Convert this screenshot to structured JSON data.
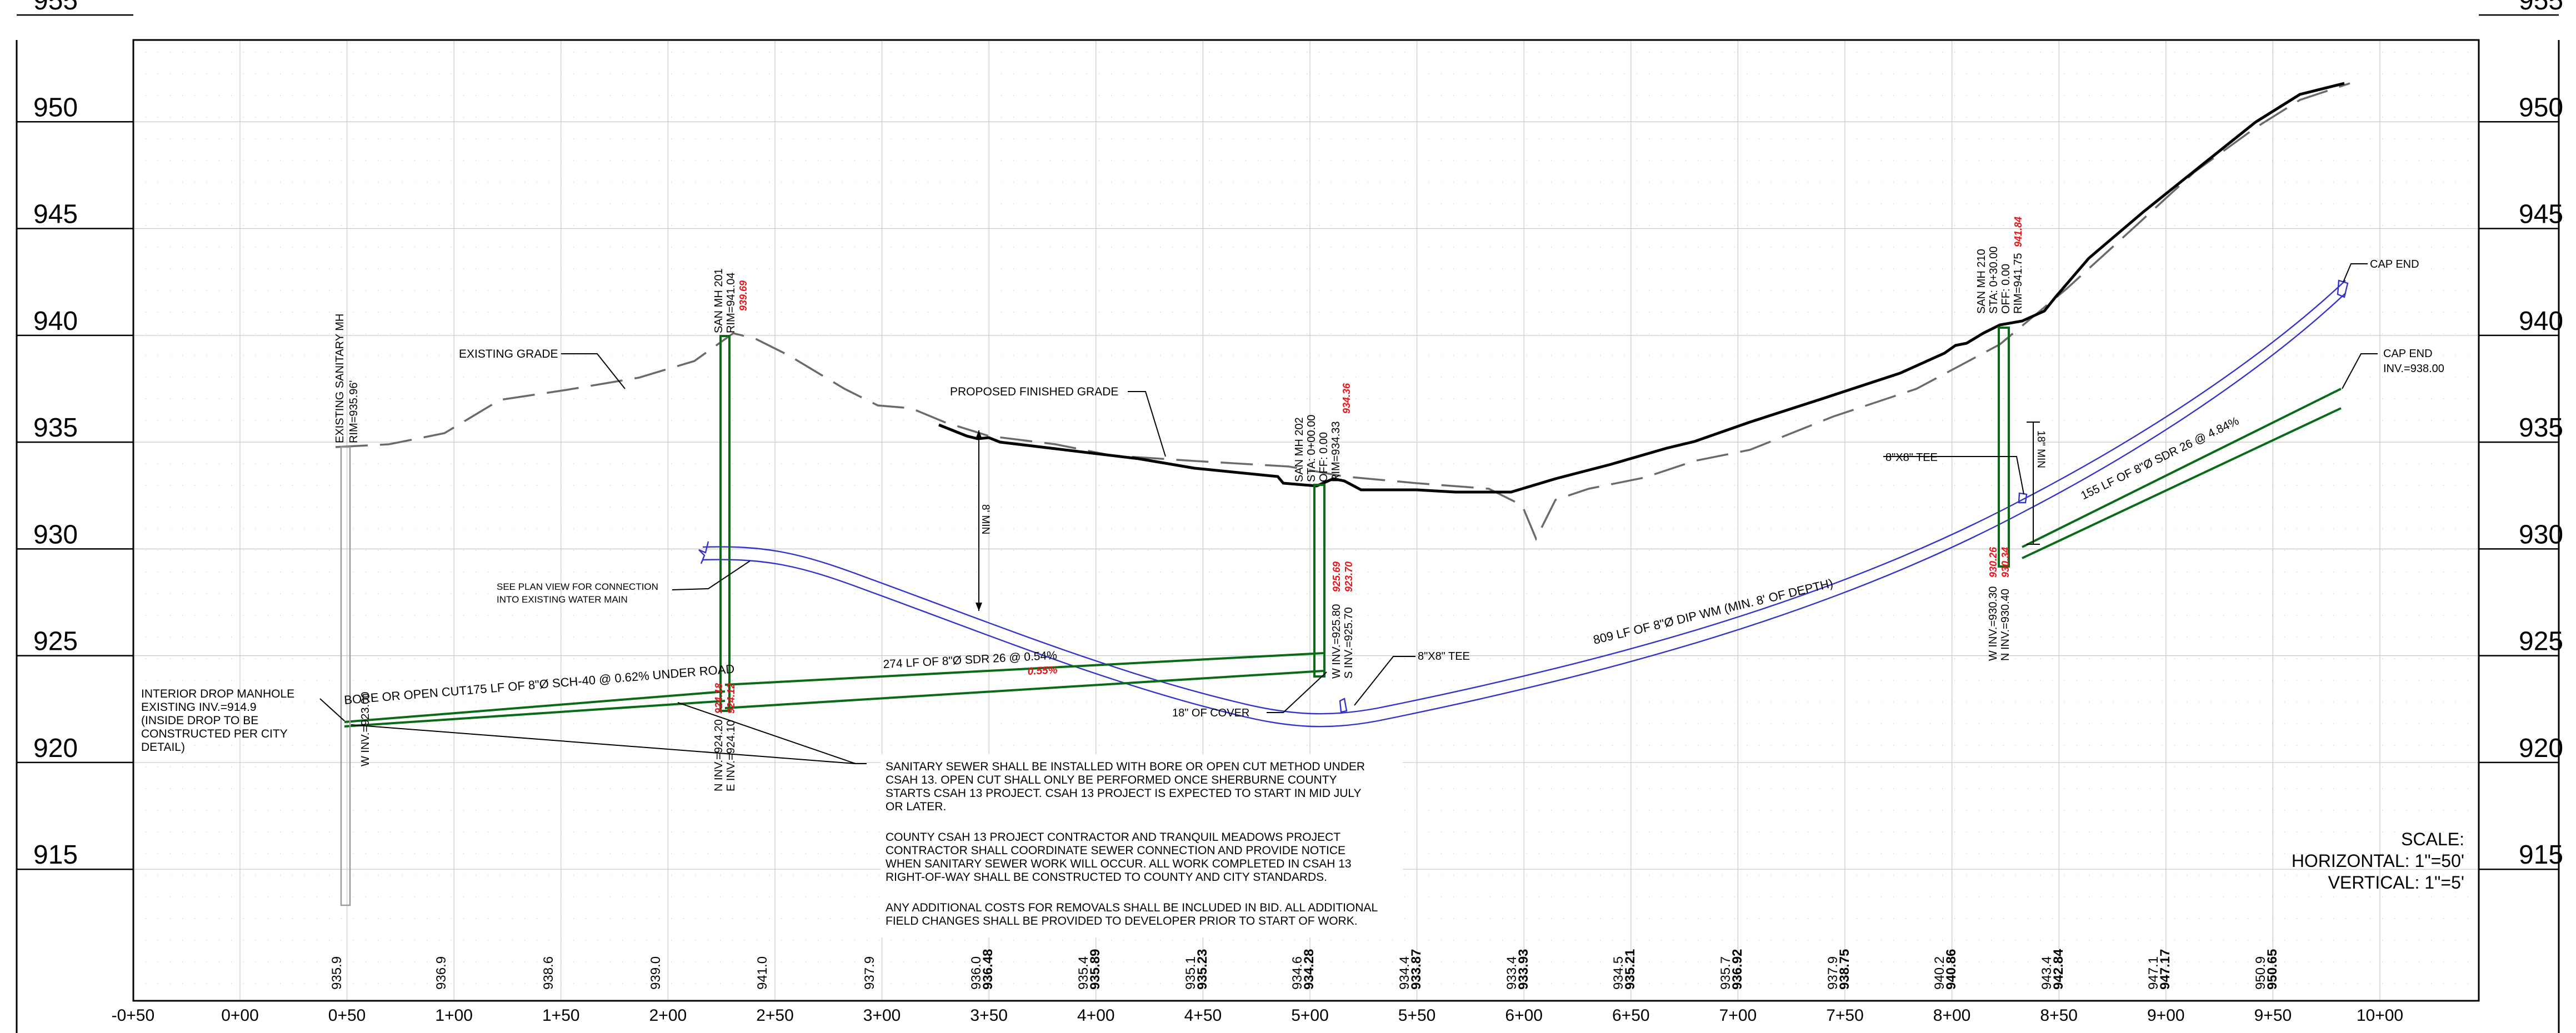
{
  "profile": {
    "elevation_labels_left": [
      "955",
      "950",
      "945",
      "940",
      "935",
      "930",
      "925",
      "920",
      "915"
    ],
    "elevation_labels_right": [
      "955",
      "950",
      "945",
      "940",
      "935",
      "930",
      "925",
      "920",
      "915"
    ],
    "station_labels": [
      "-0+50",
      "0+00",
      "0+50",
      "1+00",
      "1+50",
      "2+00",
      "2+50",
      "3+00",
      "3+50",
      "4+00",
      "4+50",
      "5+00",
      "5+50",
      "6+00",
      "6+50",
      "7+00",
      "7+50",
      "8+00",
      "8+50",
      "9+00",
      "9+50",
      "10+00"
    ],
    "existing_elevations": [
      "935.9",
      "936.9",
      "938.6",
      "939.0",
      "941.0",
      "937.9",
      "936.0",
      "935.4",
      "935.1",
      "934.6",
      "934.4",
      "933.4",
      "934.5",
      "935.7",
      "937.9",
      "940.2",
      "943.4",
      "947.1",
      "950.9"
    ],
    "proposed_elevations": [
      "936.48",
      "935.89",
      "935.23",
      "934.28",
      "933.87",
      "933.93",
      "935.21",
      "936.92",
      "938.75",
      "940.86",
      "942.84",
      "947.17",
      "950.65"
    ]
  },
  "structures": {
    "existing_mh": [
      "EXISTING SANITARY MH",
      "RIM=935.96'"
    ],
    "mh201": [
      "SAN MH 201",
      "RIM=941.04"
    ],
    "mh201_rim_new": "939.69",
    "mh201_inv_w": "N INV.=924.20",
    "mh201_inv_e": "E INV.=924.10",
    "mh201_inv_new_1": "924.18",
    "mh201_inv_new_2": "924.12",
    "mh202": [
      "SAN MH 202",
      "STA: 0+00.00",
      "OFF: 0.00",
      "RIM=934.33"
    ],
    "mh202_rim_new": "934.36",
    "mh202_inv_w": "W INV.=925.80",
    "mh202_inv_s": "S INV.=925.70",
    "mh202_inv_new_1": "925.69",
    "mh202_inv_new_2": "923.70",
    "mh210": [
      "SAN MH 210",
      "STA: 0+30.00",
      "OFF: 0.00",
      "RIM=941.75"
    ],
    "mh210_rim_new": "941.84",
    "mh210_inv_w": "W INV.=930.30",
    "mh210_inv_n": "N INV.=930.40",
    "mh210_inv_new_1": "930.26",
    "mh210_inv_new_2": "930.34",
    "winv_existing": "W INV.=923.00"
  },
  "callouts": {
    "existing_grade": "EXISTING GRADE",
    "proposed_grade": "PROPOSED FINISHED GRADE",
    "see_plan_view": [
      "SEE PLAN VIEW FOR CONNECTION",
      "INTO EXISTING WATER MAIN"
    ],
    "interior_drop": [
      "INTERIOR DROP MANHOLE",
      "EXISTING INV.=914.9",
      "(INSIDE DROP TO BE",
      "CONSTRUCTED PER CITY",
      "DETAIL)"
    ],
    "bore_cut": "BORE OR OPEN CUT175 LF OF 8\"Ø SCH-40 @ 0.62% UNDER ROAD",
    "pipe_274": "274 LF OF 8\"Ø SDR 26 @ 0.54%",
    "pipe_274_new": "0.55%",
    "tee_1": "8\"X8\" TEE",
    "tee_2": "8\"X8\" TEE",
    "cover_18": "18\" OF COVER",
    "wm_809": "809 LF OF 8\"Ø DIP WM (MIN. 8' OF DEPTH)",
    "pipe_155": "155 LF OF 8\"Ø SDR 26 @ 4.84%",
    "cap_end_1": "CAP END",
    "cap_end_2": [
      "CAP END",
      "INV.=938.00"
    ],
    "min_8": "8' MIN",
    "min_18": "18\" MIN"
  },
  "notes": [
    "SANITARY SEWER SHALL BE INSTALLED WITH BORE OR OPEN CUT METHOD UNDER",
    "CSAH 13. OPEN CUT SHALL ONLY BE PERFORMED ONCE SHERBURNE COUNTY",
    "STARTS CSAH 13 PROJECT. CSAH 13 PROJECT IS EXPECTED TO START IN MID JULY",
    "OR LATER.",
    "",
    "COUNTY CSAH 13 PROJECT CONTRACTOR AND TRANQUIL MEADOWS PROJECT",
    "CONTRACTOR SHALL COORDINATE SEWER CONNECTION AND PROVIDE NOTICE",
    "WHEN SANITARY SEWER WORK WILL OCCUR. ALL WORK COMPLETED IN CSAH 13",
    "RIGHT-OF-WAY SHALL BE CONSTRUCTED TO COUNTY AND CITY STANDARDS.",
    "",
    "ANY ADDITIONAL COSTS FOR REMOVALS SHALL BE INCLUDED IN BID. ALL ADDITIONAL",
    "FIELD CHANGES SHALL BE PROVIDED TO DEVELOPER PRIOR TO START OF WORK."
  ],
  "scale": {
    "title": "SCALE:",
    "horizontal": "HORIZONTAL: 1\"=50'",
    "vertical": "VERTICAL: 1\"=5'"
  },
  "colors": {
    "sewer": "#0a6b16",
    "watermain": "#3333cc",
    "revision": "#e8161a",
    "grid": "#c8c8c8"
  }
}
